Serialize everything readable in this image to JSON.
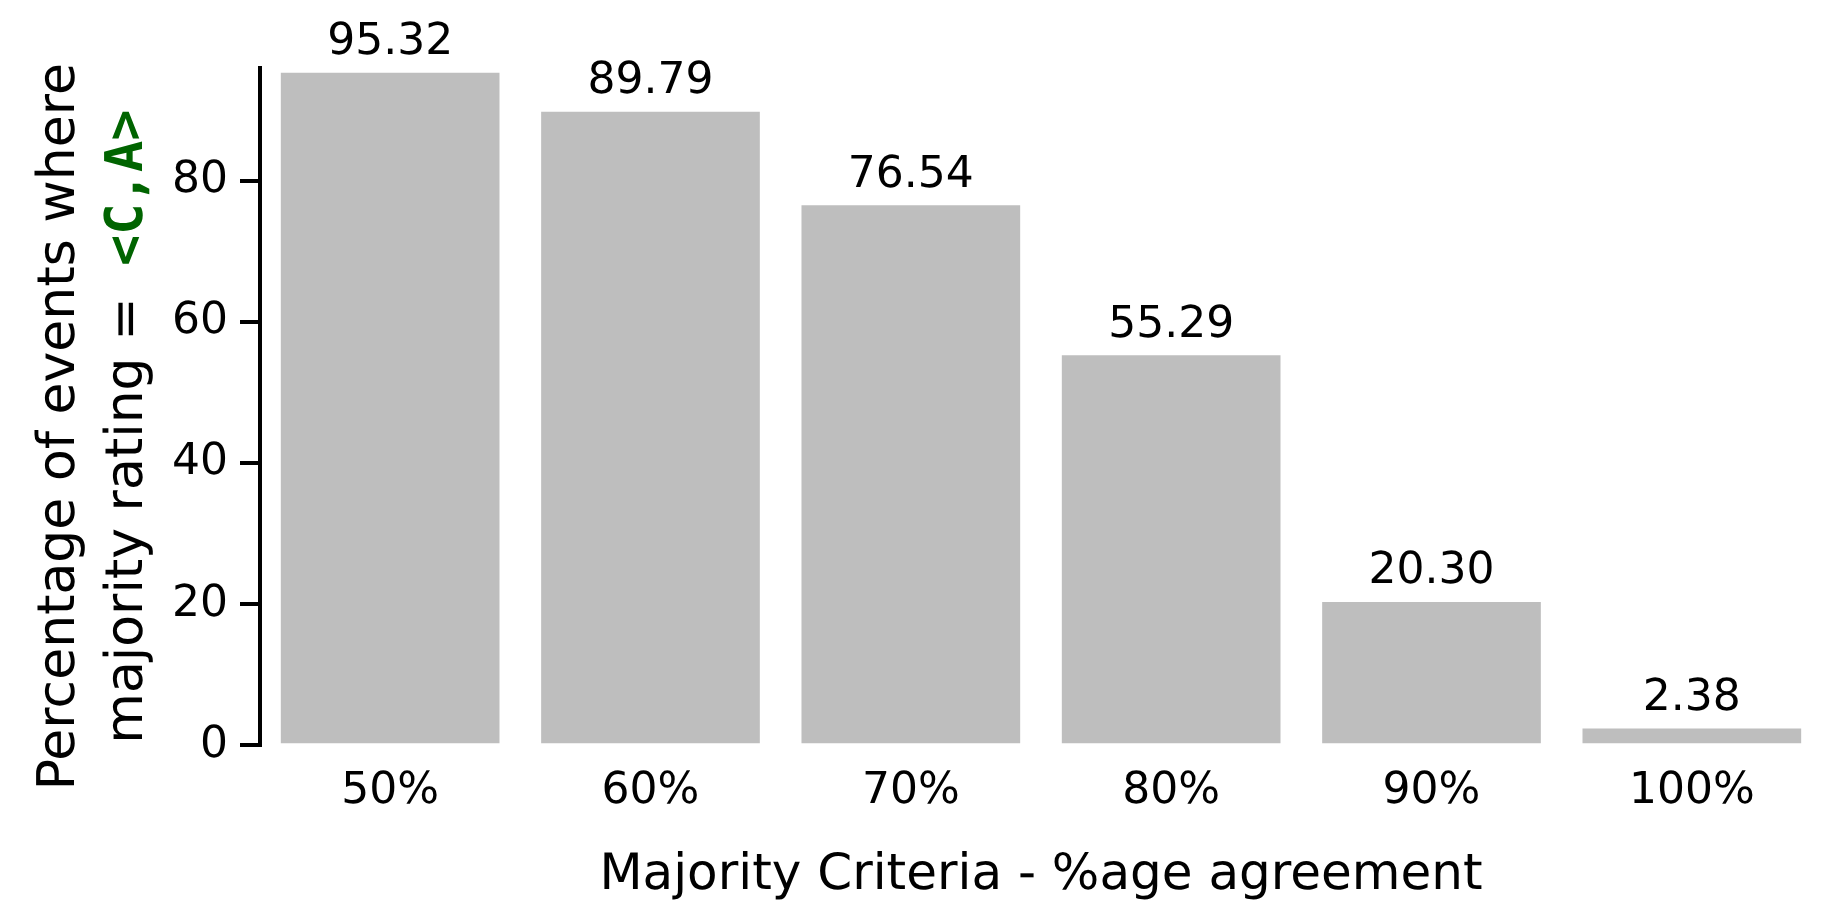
{
  "chart_data": {
    "type": "bar",
    "xlabel": "Majority Criteria - %age agreement",
    "ylabel": "Percentage of events where majority rating = <C,A>",
    "categories": [
      "50%",
      "60%",
      "70%",
      "80%",
      "90%",
      "100%"
    ],
    "values": [
      95.32,
      89.79,
      76.54,
      55.29,
      20.3,
      2.38
    ],
    "value_labels": [
      "95.32",
      "89.79",
      "76.54",
      "55.29",
      "20.30",
      "2.38"
    ],
    "color": "#bebebe",
    "ylim": [
      0,
      96
    ],
    "yticks": [
      0,
      20,
      40,
      60,
      80
    ],
    "grid": false,
    "legend": false
  }
}
